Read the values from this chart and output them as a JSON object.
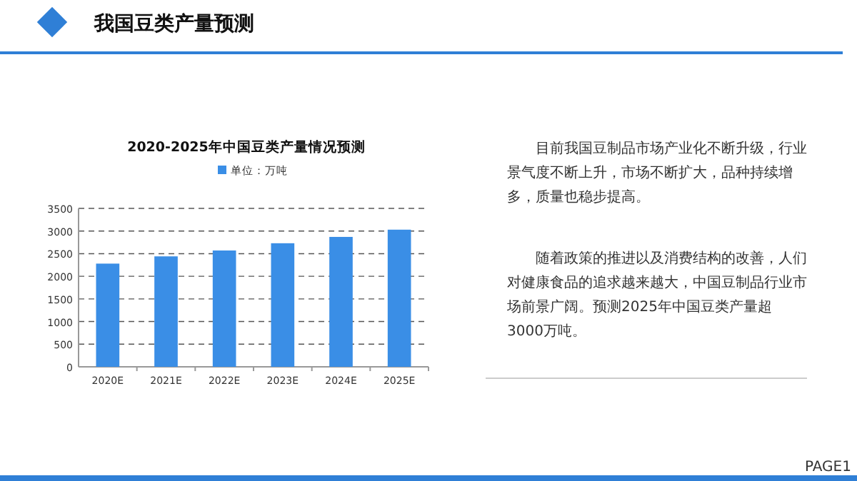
{
  "chart_data": {
    "type": "bar",
    "title": "我国豆类产量预测",
    "subtitle": "2020-2025年中国豆类产量情况预测",
    "categories": [
      "2020E",
      "2021E",
      "2022E",
      "2023E",
      "2024E",
      "2025E"
    ],
    "series": [
      {
        "name": "单位：万吨",
        "color": "#3a8ee6",
        "values": [
          2280,
          2440,
          2570,
          2730,
          2870,
          3030
        ]
      }
    ],
    "ylim": [
      0,
      3500
    ],
    "yticks": [
      0,
      500,
      1000,
      1500,
      2000,
      2500,
      3000,
      3500
    ],
    "grid": "y",
    "legend": "top",
    "annotations": [
      "目前我国豆制品市场产业化不断升级，行业景气度不断上升，市场不断扩大，品种持续增多，质量也稳步提高。",
      "随着政策的推进以及消费结构的改善，人们对健康食品的追求越来越大，中国豆制品行业市场前景广阔。预测2025年中国豆类产量超3000万吨。",
      "PAGE1"
    ]
  }
}
